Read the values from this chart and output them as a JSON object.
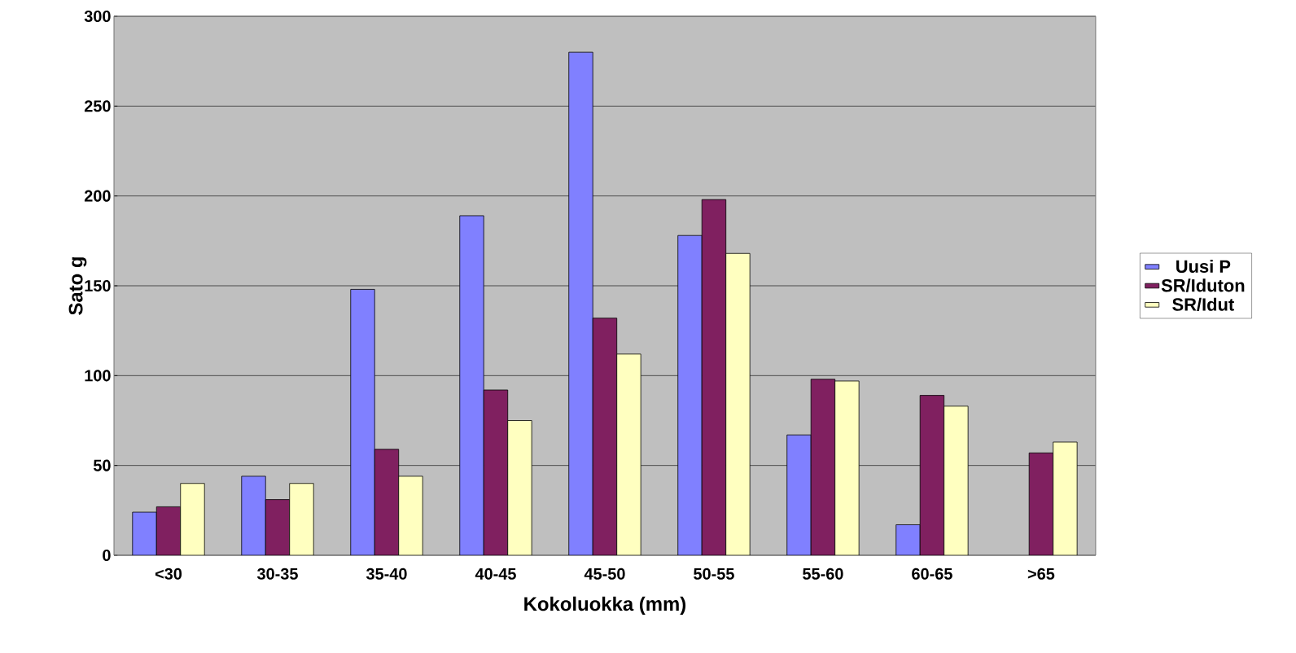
{
  "chart_data": {
    "type": "bar",
    "xlabel": "Kokoluokka (mm)",
    "ylabel": "Sato g",
    "categories": [
      "<30",
      "30-35",
      "35-40",
      "40-45",
      "45-50",
      "50-55",
      "55-60",
      "60-65",
      ">65"
    ],
    "series": [
      {
        "name": "Uusi P",
        "color": "#8080ff",
        "values": [
          24,
          44,
          148,
          189,
          280,
          178,
          67,
          17,
          null
        ]
      },
      {
        "name": "SR/Iduton",
        "color": "#802060",
        "values": [
          27,
          31,
          59,
          92,
          132,
          198,
          98,
          89,
          57
        ]
      },
      {
        "name": "SR/Idut",
        "color": "#ffffc0",
        "values": [
          40,
          40,
          44,
          75,
          112,
          168,
          97,
          83,
          63
        ]
      }
    ],
    "ylim": [
      0,
      300
    ],
    "yticks": [
      0,
      50,
      100,
      150,
      200,
      250,
      300
    ],
    "grid": "y",
    "legend": "right"
  }
}
